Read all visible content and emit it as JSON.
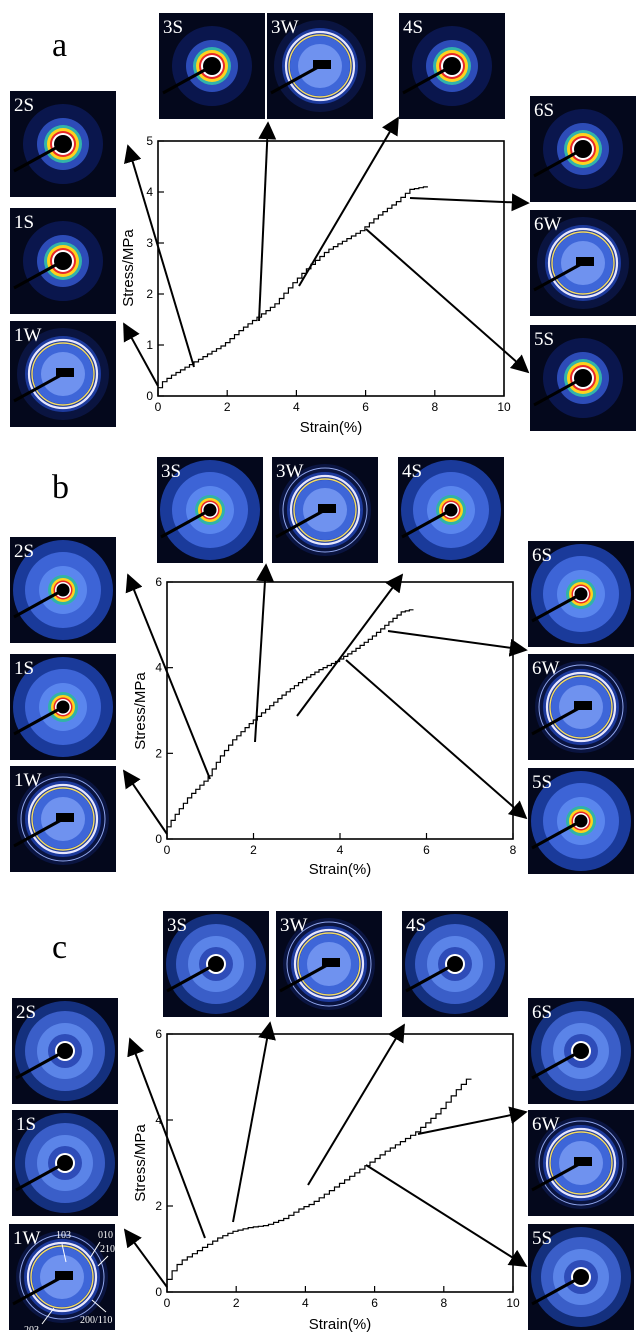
{
  "chart_data": [
    {
      "type": "line",
      "panel_label": "a",
      "xlabel": "Strain(%)",
      "ylabel": "Stress/MPa",
      "xlim": [
        0,
        10
      ],
      "ylim": [
        0,
        5
      ],
      "xticks": [
        "0",
        "2",
        "4",
        "6",
        "8",
        "10"
      ],
      "yticks": [
        "0",
        "1",
        "2",
        "3",
        "4",
        "5"
      ],
      "grid": false,
      "series": [
        {
          "x": [
            0,
            0.2,
            0.5,
            1.0,
            1.5,
            2.0,
            2.5,
            2.9,
            3.5,
            4.0,
            4.5,
            5.0,
            5.5,
            6.0,
            6.5,
            7.0,
            7.4,
            7.8
          ],
          "y": [
            0,
            0.25,
            0.4,
            0.6,
            0.8,
            1.0,
            1.3,
            1.5,
            1.8,
            2.2,
            2.55,
            2.85,
            3.05,
            3.25,
            3.55,
            3.8,
            4.05,
            4.1
          ]
        }
      ],
      "pattern_labels": [
        "3S",
        "3W",
        "4S",
        "2S",
        "1S",
        "1W",
        "6S",
        "6W",
        "5S"
      ],
      "pattern_style": "saxs-yellow"
    },
    {
      "type": "line",
      "panel_label": "b",
      "xlabel": "Strain(%)",
      "ylabel": "Stress/MPa",
      "xlim": [
        0,
        8
      ],
      "ylim": [
        0,
        6
      ],
      "xticks": [
        "0",
        "2",
        "4",
        "6",
        "8"
      ],
      "yticks": [
        "0",
        "2",
        "4",
        "6"
      ],
      "grid": false,
      "series": [
        {
          "x": [
            0,
            0.1,
            0.3,
            0.6,
            1.0,
            1.3,
            1.6,
            2.0,
            2.4,
            2.8,
            3.2,
            3.6,
            4.0,
            4.4,
            4.8,
            5.2,
            5.5,
            5.7
          ],
          "y": [
            0,
            0.3,
            0.6,
            1.0,
            1.4,
            1.9,
            2.3,
            2.7,
            3.05,
            3.4,
            3.7,
            3.95,
            4.15,
            4.4,
            4.7,
            5.05,
            5.3,
            5.35
          ]
        }
      ],
      "pattern_labels": [
        "3S",
        "3W",
        "4S",
        "2S",
        "1S",
        "1W",
        "6S",
        "6W",
        "5S"
      ],
      "pattern_style": "saxs-diffuse"
    },
    {
      "type": "line",
      "panel_label": "c",
      "xlabel": "Strain(%)",
      "ylabel": "Stress/MPa",
      "xlim": [
        0,
        10
      ],
      "ylim": [
        0,
        6
      ],
      "xticks": [
        "0",
        "2",
        "4",
        "6",
        "8",
        "10"
      ],
      "yticks": [
        "0",
        "2",
        "4",
        "6"
      ],
      "grid": false,
      "series": [
        {
          "x": [
            0,
            0.2,
            0.5,
            1.1,
            1.6,
            2.0,
            2.5,
            3.0,
            3.5,
            4.0,
            4.3,
            5.0,
            5.8,
            6.5,
            7.3,
            8.0,
            8.5,
            8.8
          ],
          "y": [
            0,
            0.4,
            0.7,
            1.0,
            1.25,
            1.4,
            1.5,
            1.55,
            1.7,
            1.95,
            2.05,
            2.45,
            2.9,
            3.3,
            3.7,
            4.2,
            4.7,
            4.95
          ]
        }
      ],
      "pattern_labels": [
        "3S",
        "3W",
        "4S",
        "2S",
        "1S",
        "1W",
        "6S",
        "6W",
        "5S"
      ],
      "pattern_style": "saxs-ring",
      "miller_indices": [
        "103",
        "010",
        "210",
        "203",
        "200/110"
      ]
    }
  ],
  "colors": {
    "pattern_background": "#04081c",
    "pattern_blue": "#3c64e6",
    "pattern_yellow": "#ffd21e",
    "pattern_red": "#e6282a",
    "ring_light": "#e6e6ff",
    "ring_yellow": "#f5dc64"
  }
}
